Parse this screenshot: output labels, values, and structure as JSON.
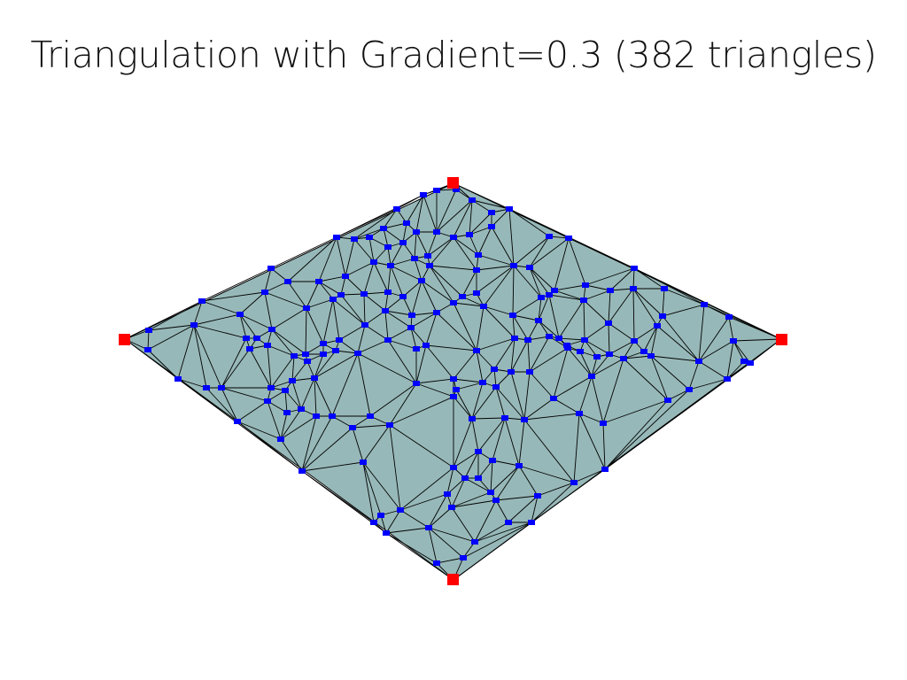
{
  "figure": {
    "title": "Triangulation with Gradient=0.3 (382 triangles)"
  },
  "colors": {
    "surface": "#97b8b8",
    "edges": "#000000",
    "interior_points": "#0000ff",
    "corner_points": "#ff0000",
    "background": "#ffffff"
  }
}
